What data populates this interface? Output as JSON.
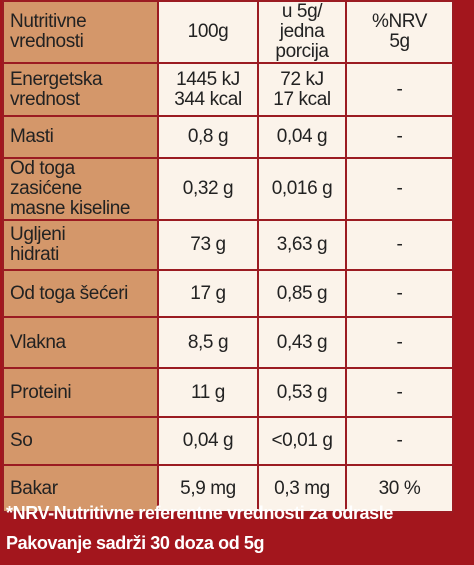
{
  "table": {
    "header": [
      "Nutritivne\nvrednosti",
      "100g",
      "u 5g/\njedna porcija",
      "%NRV\n5g"
    ],
    "rows": [
      [
        "Energetska\nvrednost",
        "1445 kJ\n344 kcal",
        "72 kJ\n17 kcal",
        "-"
      ],
      [
        "Masti",
        "0,8 g",
        "0,04 g",
        "-"
      ],
      [
        "Od toga zasićene\nmasne kiseline",
        "0,32 g",
        "0,016 g",
        "-"
      ],
      [
        "Ugljeni\nhidrati",
        "73 g",
        "3,63 g",
        "-"
      ],
      [
        "Od toga šećeri",
        "17 g",
        "0,85 g",
        "-"
      ],
      [
        "Vlakna",
        "8,5 g",
        "0,43 g",
        "-"
      ],
      [
        "Proteini",
        "11 g",
        "0,53 g",
        "-"
      ],
      [
        "So",
        "0,04 g",
        "<0,01 g",
        "-"
      ],
      [
        "Bakar",
        "5,9 mg",
        "0,3 mg",
        "30 %"
      ]
    ]
  },
  "footnote": [
    "*NRV-Nutritivne referentne vrednosti za odrasle",
    "Pakovanje sadrži 30 doza od 5g"
  ]
}
